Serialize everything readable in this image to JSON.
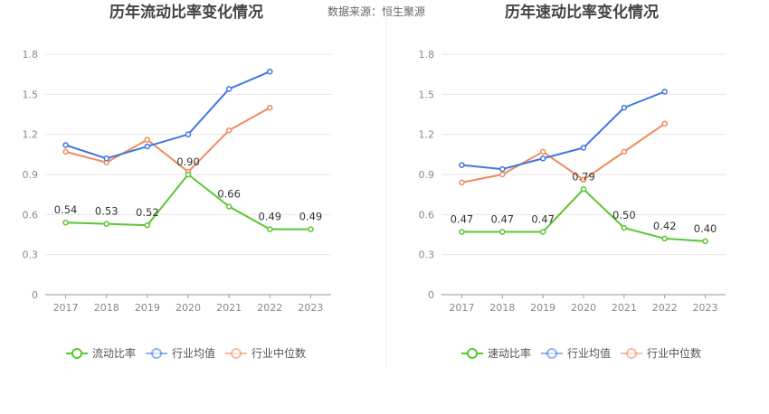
{
  "source_text": "数据来源：恒生聚源",
  "chart_data": [
    {
      "type": "line",
      "title": "历年流动比率变化情况",
      "x": [
        "2017",
        "2018",
        "2019",
        "2020",
        "2021",
        "2022",
        "2023"
      ],
      "ylim": [
        0,
        1.8
      ],
      "yticks": [
        "0",
        "0.3",
        "0.6",
        "0.9",
        "1.2",
        "1.5",
        "1.8"
      ],
      "grid": true,
      "legend_position": "bottom",
      "series": [
        {
          "name": "流动比率",
          "color": "#5ac633",
          "values": [
            0.54,
            0.53,
            0.52,
            0.9,
            0.66,
            0.49,
            0.49
          ],
          "labels": [
            "0.54",
            "0.53",
            "0.52",
            "0.90",
            "0.66",
            "0.49",
            "0.49"
          ]
        },
        {
          "name": "行业均值",
          "color": "#3f77e0",
          "values": [
            1.12,
            1.02,
            1.11,
            1.2,
            1.54,
            1.67,
            null
          ]
        },
        {
          "name": "行业中位数",
          "color": "#f08a5d",
          "values": [
            1.07,
            0.99,
            1.16,
            0.92,
            1.23,
            1.4,
            null
          ]
        }
      ]
    },
    {
      "type": "line",
      "title": "历年速动比率变化情况",
      "x": [
        "2017",
        "2018",
        "2019",
        "2020",
        "2021",
        "2022",
        "2023"
      ],
      "ylim": [
        0,
        1.8
      ],
      "yticks": [
        "0",
        "0.3",
        "0.6",
        "0.9",
        "1.2",
        "1.5",
        "1.8"
      ],
      "grid": true,
      "legend_position": "bottom",
      "series": [
        {
          "name": "速动比率",
          "color": "#5ac633",
          "values": [
            0.47,
            0.47,
            0.47,
            0.79,
            0.5,
            0.42,
            0.4
          ],
          "labels": [
            "0.47",
            "0.47",
            "0.47",
            "0.79",
            "0.50",
            "0.42",
            "0.40"
          ]
        },
        {
          "name": "行业均值",
          "color": "#3f77e0",
          "values": [
            0.97,
            0.94,
            1.02,
            1.1,
            1.4,
            1.52,
            null
          ]
        },
        {
          "name": "行业中位数",
          "color": "#f08a5d",
          "values": [
            0.84,
            0.9,
            1.07,
            0.86,
            1.07,
            1.28,
            null
          ]
        }
      ]
    }
  ]
}
